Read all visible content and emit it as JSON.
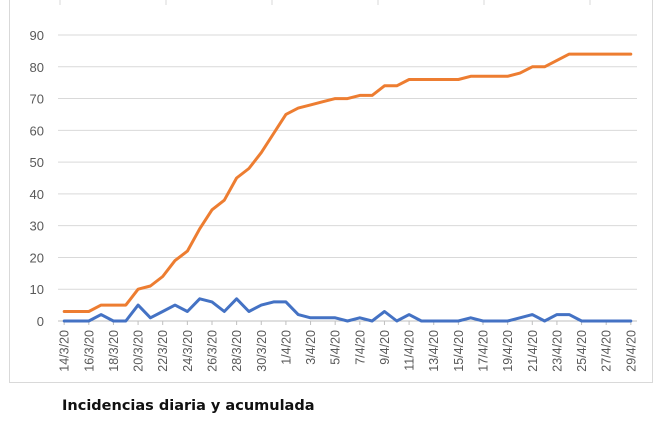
{
  "caption": "Incidencias diaria y acumulada",
  "chart_data": {
    "type": "line",
    "title": "",
    "xlabel": "",
    "ylabel": "",
    "ylim": [
      0,
      90
    ],
    "yticks": [
      0,
      10,
      20,
      30,
      40,
      50,
      60,
      70,
      80,
      90
    ],
    "grid": true,
    "legend": "none",
    "x": [
      "14/3/20",
      "15/3/20",
      "16/3/20",
      "17/3/20",
      "18/3/20",
      "19/3/20",
      "20/3/20",
      "21/3/20",
      "22/3/20",
      "23/3/20",
      "24/3/20",
      "25/3/20",
      "26/3/20",
      "27/3/20",
      "28/3/20",
      "29/3/20",
      "30/3/20",
      "31/3/20",
      "1/4/20",
      "2/4/20",
      "3/4/20",
      "4/4/20",
      "5/4/20",
      "6/4/20",
      "7/4/20",
      "8/4/20",
      "9/4/20",
      "10/4/20",
      "11/4/20",
      "12/4/20",
      "13/4/20",
      "14/4/20",
      "15/4/20",
      "16/4/20",
      "17/4/20",
      "18/4/20",
      "19/4/20",
      "20/4/20",
      "21/4/20",
      "22/4/20",
      "23/4/20",
      "24/4/20",
      "25/4/20",
      "26/4/20",
      "27/4/20",
      "28/4/20",
      "29/4/20"
    ],
    "xtick_labels": [
      "14/3/20",
      "16/3/20",
      "18/3/20",
      "20/3/20",
      "22/3/20",
      "24/3/20",
      "26/3/20",
      "28/3/20",
      "30/3/20",
      "1/4/20",
      "3/4/20",
      "5/4/20",
      "7/4/20",
      "9/4/20",
      "11/4/20",
      "13/4/20",
      "15/4/20",
      "17/4/20",
      "19/4/20",
      "21/4/20",
      "23/4/20",
      "25/4/20",
      "27/4/20",
      "29/4/20"
    ],
    "series": [
      {
        "color": "#ED7D31",
        "values": [
          3,
          3,
          3,
          5,
          5,
          5,
          10,
          11,
          14,
          19,
          22,
          29,
          35,
          38,
          45,
          48,
          53,
          59,
          65,
          67,
          68,
          69,
          70,
          70,
          71,
          71,
          74,
          74,
          76,
          76,
          76,
          76,
          76,
          77,
          77,
          77,
          77,
          78,
          80,
          80,
          82,
          84,
          84,
          84,
          84,
          84,
          84
        ]
      },
      {
        "color": "#4472C4",
        "values": [
          0,
          0,
          0,
          2,
          0,
          0,
          5,
          1,
          3,
          5,
          3,
          7,
          6,
          3,
          7,
          3,
          5,
          6,
          6,
          2,
          1,
          1,
          1,
          0,
          1,
          0,
          3,
          0,
          2,
          0,
          0,
          0,
          0,
          1,
          0,
          0,
          0,
          1,
          2,
          0,
          2,
          2,
          0,
          0,
          0,
          0,
          0
        ]
      }
    ]
  }
}
